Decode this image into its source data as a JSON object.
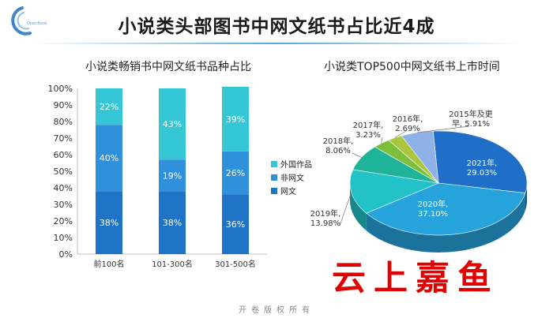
{
  "logo": {
    "text": "OpenBook"
  },
  "title": "小说类头部图书中网文纸书占比近4成",
  "footer": "开卷版权所有",
  "watermark": "云上嘉鱼",
  "chart_data": [
    {
      "type": "bar",
      "stacked": true,
      "title": "小说类畅销书中网文纸书品种占比",
      "categories": [
        "前100名",
        "101-300名",
        "301-500名"
      ],
      "ylim": [
        0,
        100
      ],
      "yticks": [
        "0%",
        "10%",
        "20%",
        "30%",
        "40%",
        "50%",
        "60%",
        "70%",
        "80%",
        "90%",
        "100%"
      ],
      "legend_position": "right",
      "series": [
        {
          "name": "网文",
          "color": "#1f74c8",
          "values": [
            38,
            38,
            36
          ],
          "labels": [
            "38%",
            "38%",
            "36%"
          ]
        },
        {
          "name": "非网文",
          "color": "#2f91dc",
          "values": [
            40,
            19,
            26
          ],
          "labels": [
            "40%",
            "19%",
            "26%"
          ]
        },
        {
          "name": "外国作品",
          "color": "#34c6d4",
          "values": [
            22,
            43,
            39
          ],
          "labels": [
            "22%",
            "43%",
            "39%"
          ]
        }
      ],
      "legend_order": [
        "外国作品",
        "非网文",
        "网文"
      ]
    },
    {
      "type": "pie",
      "style": "3d",
      "title": "小说类TOP500中网文纸书上市时间",
      "slices": [
        {
          "label": "2021年,",
          "value_label": "29.03%",
          "value": 29.03,
          "color": "#1f6fc8"
        },
        {
          "label": "2020年,",
          "value_label": "37.10%",
          "value": 37.1,
          "color": "#27a3dc"
        },
        {
          "label": "2019年,",
          "value_label": "13.98%",
          "value": 13.98,
          "color": "#22c2c8"
        },
        {
          "label": "2018年,",
          "value_label": "8.06%",
          "value": 8.06,
          "color": "#1fb39a"
        },
        {
          "label": "2017年,",
          "value_label": "3.23%",
          "value": 3.23,
          "color": "#7cbf3c"
        },
        {
          "label": "2016年,",
          "value_label": "2.69%",
          "value": 2.69,
          "color": "#a9c63c"
        },
        {
          "label": "2015年及更",
          "label2": "早,",
          "value_label": "5.91%",
          "value": 5.91,
          "color": "#8fb0e8"
        }
      ]
    }
  ]
}
